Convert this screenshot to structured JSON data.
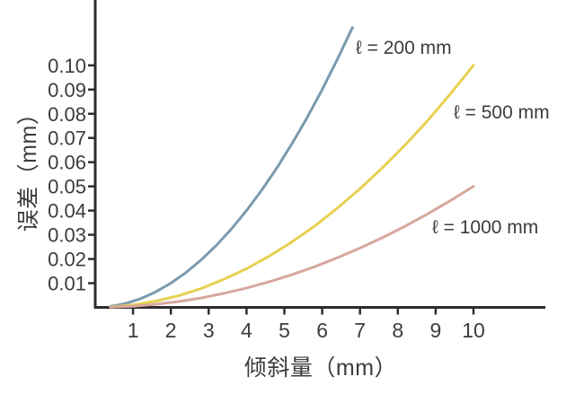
{
  "chart_data": {
    "type": "line",
    "title": "",
    "xlabel": "倾斜量（mm）",
    "ylabel": "误差（mm）",
    "xlim": [
      0,
      11.9
    ],
    "ylim": [
      0,
      0.127
    ],
    "grid": false,
    "legend_position": "labels placed at the upper-right end of each curve",
    "x_ticks": [
      1,
      2,
      3,
      4,
      5,
      6,
      7,
      8,
      9,
      10
    ],
    "x_tick_labels": [
      "1",
      "2",
      "3",
      "4",
      "5",
      "6",
      "7",
      "8",
      "9",
      "10"
    ],
    "y_ticks": [
      0.01,
      0.02,
      0.03,
      0.04,
      0.05,
      0.06,
      0.07,
      0.08,
      0.09,
      0.1
    ],
    "y_tick_labels": [
      "0.01",
      "0.02",
      "0.03",
      "0.04",
      "0.05",
      "0.06",
      "0.07",
      "0.08",
      "0.09",
      "0.10"
    ],
    "axis_color": "#2d2d2d",
    "text_color": "#3c3c3c",
    "series": [
      {
        "name": "ℓ = 200 mm",
        "color": "#7b9aae",
        "x": [
          0.4,
          0.8,
          1.2,
          1.6,
          2.0,
          2.4,
          2.8,
          3.2,
          3.6,
          4.0,
          4.4,
          4.8,
          5.2,
          5.6,
          6.0,
          6.4,
          6.8
        ],
        "y": [
          0.0004,
          0.0016,
          0.0036,
          0.0064,
          0.01,
          0.0144,
          0.0196,
          0.0256,
          0.0324,
          0.04,
          0.0484,
          0.0576,
          0.0676,
          0.0784,
          0.09,
          0.1024,
          0.1156
        ]
      },
      {
        "name": "ℓ = 500 mm",
        "color": "#e8d052",
        "x": [
          0.4,
          1.0,
          1.6,
          2.2,
          2.8,
          3.4,
          4.0,
          4.6,
          5.2,
          5.8,
          6.4,
          7.0,
          7.6,
          8.2,
          8.8,
          9.4,
          10.0
        ],
        "y": [
          0.0002,
          0.001,
          0.0026,
          0.0048,
          0.0078,
          0.0116,
          0.016,
          0.0212,
          0.027,
          0.0336,
          0.041,
          0.049,
          0.0578,
          0.0672,
          0.0774,
          0.0884,
          0.1
        ]
      },
      {
        "name": "ℓ = 1000 mm",
        "color": "#d7a79e",
        "x": [
          0.4,
          1.0,
          1.6,
          2.2,
          2.8,
          3.4,
          4.0,
          4.6,
          5.2,
          5.8,
          6.4,
          7.0,
          7.6,
          8.2,
          8.8,
          9.4,
          10.0
        ],
        "y": [
          0.0001,
          0.0005,
          0.0013,
          0.0024,
          0.0039,
          0.0058,
          0.008,
          0.0106,
          0.0135,
          0.0168,
          0.0205,
          0.0245,
          0.0289,
          0.0336,
          0.0387,
          0.0442,
          0.05
        ]
      }
    ]
  }
}
